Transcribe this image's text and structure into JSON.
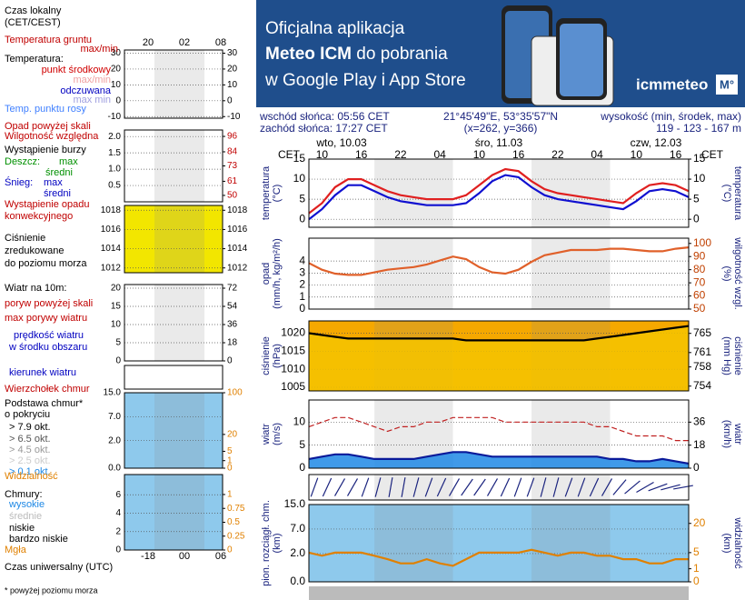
{
  "banner": {
    "line1": "Oficjalna aplikacja",
    "line2_bold": "Meteo ICM",
    "line2_rest": " do pobrania",
    "line3": "w Google Play i App Store",
    "logo": "icmmeteo",
    "badge": "M°"
  },
  "info": {
    "sunrise": "wschód słońca: 05:56 CET",
    "sunset": "zachód słońca: 17:27 CET",
    "coords": "21°45'49\"E, 53°35'57\"N",
    "grid": "(x=262, y=366)",
    "elev_title": "wysokość (min, środek, max)",
    "elev": "119 - 123 - 167 m"
  },
  "legend": {
    "top_hours": [
      "20",
      "02",
      "08"
    ],
    "bottom_hours": [
      "-18",
      "00",
      "06"
    ],
    "items": [
      {
        "text": "Czas lokalny",
        "color": "#000"
      },
      {
        "text": "(CET/CEST)",
        "color": "#000"
      },
      {
        "text": "Temperatura gruntu",
        "color": "#c00000"
      },
      {
        "text": "max/min",
        "color": "#c00000"
      },
      {
        "text": "Temperatura:",
        "color": "#000"
      },
      {
        "text": "punkt środkowy",
        "color": "#d00000"
      },
      {
        "text": "max/min",
        "color": "#f0a0a0"
      },
      {
        "text": "odczuwana",
        "color": "#0000c0"
      },
      {
        "text": "max min",
        "color": "#a0a0e0"
      },
      {
        "text": "Temp. punktu rosy",
        "color": "#4080ff"
      },
      {
        "text": "Opad powyżej skali",
        "color": "#c00000"
      },
      {
        "text": "Wilgotność względna",
        "color": "#c00000"
      },
      {
        "text": "Wystąpienie burzy",
        "color": "#000"
      },
      {
        "text": "Deszcz:",
        "color": "#009000"
      },
      {
        "text": "max",
        "color": "#009000"
      },
      {
        "text": "średni",
        "color": "#009000"
      },
      {
        "text": "Śnieg:",
        "color": "#0000c0"
      },
      {
        "text": "max",
        "color": "#0000c0"
      },
      {
        "text": "średni",
        "color": "#0000c0"
      },
      {
        "text": "Wystąpienie opadu",
        "color": "#c00000"
      },
      {
        "text": "konwekcyjnego",
        "color": "#c00000"
      },
      {
        "text": "Ciśnienie",
        "color": "#000"
      },
      {
        "text": "zredukowane",
        "color": "#000"
      },
      {
        "text": "do poziomu morza",
        "color": "#000"
      },
      {
        "text": "Wiatr na 10m:",
        "color": "#000"
      },
      {
        "text": "poryw powyżej skali",
        "color": "#c00000"
      },
      {
        "text": "max porywy wiatru",
        "color": "#c00000"
      },
      {
        "text": "prędkość wiatru",
        "color": "#0000c0"
      },
      {
        "text": "w środku obszaru",
        "color": "#0000c0"
      },
      {
        "text": "kierunek wiatru",
        "color": "#0000c0"
      },
      {
        "text": "Wierzchołek chmur",
        "color": "#c00000"
      },
      {
        "text": "Podstawa chmur*",
        "color": "#000"
      },
      {
        "text": "o pokryciu",
        "color": "#000"
      },
      {
        "text": "> 7.9 okt.",
        "color": "#000"
      },
      {
        "text": "> 6.5 okt.",
        "color": "#555"
      },
      {
        "text": "> 4.5 okt.",
        "color": "#999"
      },
      {
        "text": "> 2.5 okt.",
        "color": "#ccc"
      },
      {
        "text": "> 0.1 okt.",
        "color": "#1e88e5"
      },
      {
        "text": "Widzialność",
        "color": "#e08000"
      },
      {
        "text": "Chmury:",
        "color": "#000"
      },
      {
        "text": "wysokie",
        "color": "#1e88e5"
      },
      {
        "text": "średnie",
        "color": "#bbb"
      },
      {
        "text": "niskie",
        "color": "#000"
      },
      {
        "text": "bardzo niskie",
        "color": "#000"
      },
      {
        "text": "Mgła",
        "color": "#e08000"
      },
      {
        "text": "Czas uniwersalny (UTC)",
        "color": "#000"
      },
      {
        "text": "* powyżej poziomu morza",
        "color": "#000"
      }
    ],
    "panels": [
      {
        "ylim": [
          -11,
          32
        ],
        "yticks": [
          30,
          20,
          10,
          0,
          -10
        ],
        "y2lim": [
          -11,
          32
        ],
        "y2ticks": [
          30,
          20,
          10,
          0,
          -10
        ],
        "bg": "#ffffff"
      },
      {
        "ylim": [
          0,
          2.2
        ],
        "yticks": [
          {
            "value": 2,
            "label": "2.0"
          },
          1.5,
          {
            "value": 1,
            "label": "1.0"
          },
          0.5
        ],
        "y2lim": [
          45,
          101
        ],
        "y2ticks": [
          96,
          84,
          73,
          61,
          50
        ],
        "y2color": "#c00000",
        "bg": "#ffffff"
      },
      {
        "ylim": [
          1011.5,
          1018.5
        ],
        "yticks": [
          1018,
          1016,
          1014,
          1012
        ],
        "y2lim": [
          1011.5,
          1018.5
        ],
        "y2ticks": [
          1018,
          1016,
          1014,
          1012
        ],
        "bg": "#f2e600"
      },
      {
        "ylim": [
          0,
          21
        ],
        "yticks": [
          20,
          15,
          10,
          5,
          0
        ],
        "y2lim": [
          0,
          75.6
        ],
        "y2ticks": [
          72,
          54,
          36,
          18,
          0
        ],
        "bg": "#ffffff"
      },
      {
        "ylim": [
          0,
          15
        ],
        "scale": "sqrt",
        "yticks": [
          {
            "value": 15,
            "label": "15.0"
          },
          {
            "value": 7,
            "label": "7.0"
          },
          {
            "value": 2,
            "label": "2.0"
          },
          {
            "value": 0,
            "label": "0.0"
          }
        ],
        "y2lim": [
          0,
          100
        ],
        "y2ticks": [
          100,
          20,
          5,
          1,
          0
        ],
        "y2color": "#e08000",
        "bg": "#8ec9ec"
      },
      {
        "ylim": [
          0,
          8.2
        ],
        "yticks": [
          6,
          4,
          2,
          0
        ],
        "y2lim": [
          0,
          1.36
        ],
        "y2ticks": [
          1,
          0.75,
          0.5,
          0.25,
          0
        ],
        "y2color": "#e08000",
        "bg": "#8ec9ec"
      }
    ]
  },
  "main": {
    "tz_left": "CET",
    "tz_right": "CET",
    "days": [
      "wto, 10.03",
      "śro, 11.03",
      "czw, 12.03"
    ],
    "hours": [
      "10",
      "16",
      "22",
      "04",
      "10",
      "16",
      "22",
      "04",
      "10",
      "16"
    ],
    "panels": [
      {
        "left_label": [
          "temperatura",
          "(°C)"
        ],
        "right_label": [
          "(°C)",
          "temperatura"
        ],
        "ylim": [
          -2,
          15
        ],
        "yticks": [
          15,
          10,
          5,
          0
        ],
        "y2lim": [
          -2,
          15
        ],
        "y2ticks": [
          15,
          10,
          5,
          0
        ],
        "bg": "#ffffff",
        "series": [
          {
            "color": "#e02020",
            "values": [
              1.5,
              4,
              8,
              10,
              10,
              8.5,
              7,
              6,
              5.5,
              5,
              5,
              5,
              6,
              8.5,
              11,
              12.5,
              12,
              9.5,
              7.5,
              6.5,
              6,
              5.5,
              5,
              4.5,
              4,
              6.5,
              8.5,
              9,
              8.5,
              7
            ]
          },
          {
            "color": "#1010d0",
            "values": [
              0,
              2.5,
              6,
              8.5,
              8.5,
              7,
              5.5,
              4.5,
              4,
              3.5,
              3.5,
              3.5,
              4,
              6.5,
              9.5,
              11,
              10.5,
              8,
              6,
              5,
              4.5,
              4,
              3.5,
              3,
              2.5,
              4.5,
              7,
              7.5,
              7,
              5.5
            ]
          }
        ]
      },
      {
        "left_label": [
          "opad",
          "(mm/h, kg/m²/h)"
        ],
        "right_label": [
          "(%)",
          "wilgotność wzgl."
        ],
        "ylim": [
          0,
          5.9
        ],
        "yticks": [
          4,
          3,
          2,
          1,
          0
        ],
        "y2lim": [
          50,
          104
        ],
        "y2ticks": [
          100,
          90,
          80,
          70,
          60,
          50
        ],
        "y2color": "#c04000",
        "bg": "#ffffff",
        "series": [
          {
            "color": "#e0602a",
            "axis": "y2",
            "values": [
              85,
              80,
              77,
              76,
              76,
              78,
              80,
              81,
              82,
              84,
              87,
              90,
              88,
              82,
              78,
              77,
              80,
              86,
              91,
              93,
              95,
              95,
              95,
              96,
              96,
              95,
              94,
              94,
              96,
              97
            ]
          }
        ]
      },
      {
        "left_label": [
          "ciśnienie",
          "(hPa)"
        ],
        "right_label": [
          "(mm Hg)",
          "ciśnienie"
        ],
        "ylim": [
          1004,
          1023.4
        ],
        "yticks": [
          1020,
          1015,
          1010,
          1005
        ],
        "y2lim": [
          753,
          767.6
        ],
        "y2ticks": [
          765,
          761,
          758,
          754
        ],
        "bg": "#f5a800",
        "area": "#f5c400",
        "series": [
          {
            "color": "#000000",
            "values": [
              1020,
              1019.5,
              1019,
              1018.5,
              1018.5,
              1018.5,
              1018.5,
              1018.5,
              1018.5,
              1018.5,
              1018.5,
              1018.5,
              1018,
              1018,
              1018,
              1018,
              1018,
              1018,
              1018,
              1018,
              1018,
              1018,
              1018.5,
              1019,
              1019.5,
              1020,
              1020.5,
              1021,
              1021.5,
              1022
            ]
          }
        ]
      },
      {
        "left_label": [
          "wiatr",
          "(m/s)"
        ],
        "right_label": [
          "(km/h)",
          "wiatr"
        ],
        "ylim": [
          0,
          14.8
        ],
        "yticks": [
          10,
          5,
          0
        ],
        "y2lim": [
          0,
          53.3
        ],
        "y2ticks": [
          36,
          18,
          0
        ],
        "bg": "#ffffff",
        "area": "#1e88e5",
        "series": [
          {
            "color": "#0a1a9a",
            "values": [
              2,
              2.5,
              3,
              3,
              2.5,
              2,
              2,
              2,
              2,
              2.5,
              3,
              3.5,
              3.5,
              3,
              2.5,
              2.5,
              2.5,
              2.5,
              2.5,
              2.5,
              2.5,
              2.5,
              2.5,
              2,
              2,
              1.5,
              1.5,
              2,
              1.5,
              1
            ]
          },
          {
            "color": "#c02020",
            "dash": true,
            "values": [
              9,
              10,
              11,
              11,
              10,
              9,
              8,
              9,
              9,
              10,
              10,
              11,
              11,
              11,
              11,
              10,
              10,
              10,
              10,
              10,
              10,
              10,
              9,
              9,
              8,
              7,
              7,
              7,
              6,
              6
            ]
          }
        ]
      },
      {
        "wind_dir": [
          200,
          205,
          210,
          210,
          200,
          195,
          190,
          190,
          195,
          200,
          205,
          210,
          215,
          215,
          210,
          205,
          200,
          200,
          195,
          195,
          200,
          200,
          205,
          210,
          220,
          230,
          240,
          250,
          255,
          260
        ],
        "bg": "#ffffff"
      },
      {
        "left_label": [
          "pion. rozciągł. chm.",
          "(km)"
        ],
        "right_label": [
          "(km)",
          "widzialność"
        ],
        "ylim": [
          0,
          15
        ],
        "scale": "sqrt",
        "yticks": [
          {
            "value": 15,
            "label": "15.0"
          },
          {
            "value": 7,
            "label": "7.0"
          },
          {
            "value": 2,
            "label": "2.0"
          },
          {
            "value": 0,
            "label": "0.0"
          }
        ],
        "y2lim": [
          0,
          35
        ],
        "y2ticks": [
          20,
          5,
          1,
          0
        ],
        "y2color": "#e08000",
        "bg": "#8ec9ec",
        "series": [
          {
            "color": "#e08000",
            "axis": "y2",
            "values": [
              5,
              4,
              5,
              5,
              5,
              4,
              3,
              2,
              2,
              3,
              2,
              1.5,
              3,
              5,
              5,
              5,
              5,
              6,
              5,
              4,
              5,
              5,
              4,
              4,
              3,
              3,
              2,
              2,
              3,
              3
            ]
          }
        ]
      }
    ]
  }
}
